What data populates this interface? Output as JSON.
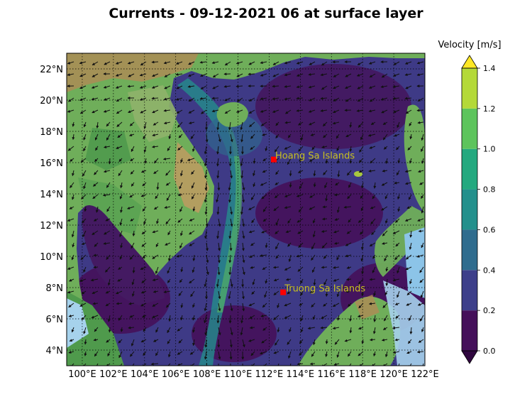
{
  "title": "Currents - 09-12-2021 06 at surface layer",
  "map": {
    "lat_ticks": [
      "22°N",
      "20°N",
      "18°N",
      "16°N",
      "14°N",
      "12°N",
      "10°N",
      "8°N",
      "6°N",
      "4°N"
    ],
    "lon_ticks": [
      "100°E",
      "102°E",
      "104°E",
      "106°E",
      "108°E",
      "110°E",
      "112°E",
      "114°E",
      "116°E",
      "118°E",
      "120°E",
      "122°E"
    ],
    "lat_range": [
      3,
      23
    ],
    "lon_range": [
      99,
      122
    ],
    "places": [
      {
        "name": "Hoang Sa Islands",
        "lon": 112.3,
        "lat": 16.2,
        "marker_color": "#ff0000"
      },
      {
        "name": "Truong Sa Islands",
        "lon": 112.9,
        "lat": 7.7,
        "marker_color": "#ff0000"
      }
    ]
  },
  "colorbar": {
    "label": "Velocity [m/s]",
    "ticks": [
      "0.0",
      "0.2",
      "0.4",
      "0.6",
      "0.8",
      "1.0",
      "1.2",
      "1.4"
    ],
    "colors": [
      "#45105a",
      "#3d3f8a",
      "#2f6c8e",
      "#23908c",
      "#24a97f",
      "#5dc45c",
      "#b4d938",
      "#fde725"
    ]
  }
}
